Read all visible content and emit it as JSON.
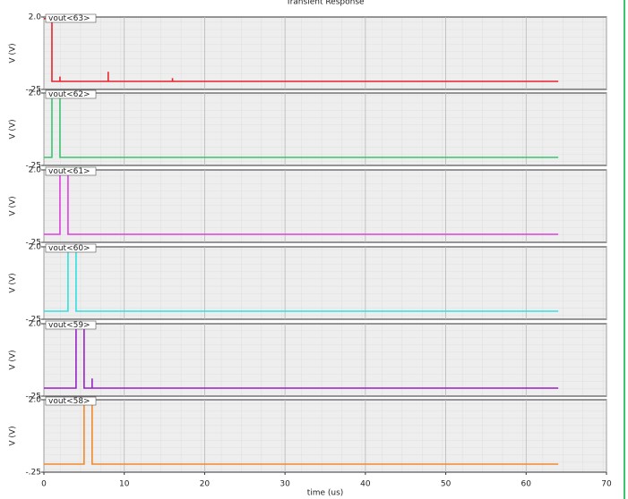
{
  "chart_data": [
    {
      "type": "line",
      "title": "Transient Response",
      "ylabel": "V (V)",
      "xlim": [
        0,
        70
      ],
      "xticks": [
        0,
        10,
        20,
        30,
        40,
        50,
        60,
        70
      ],
      "ylim": [
        -0.25,
        2.0
      ],
      "yticks": [
        {
          "value": 2.0,
          "label": "2.0"
        },
        {
          "value": -0.25,
          "label": "-.25"
        }
      ],
      "x": [
        0,
        1,
        1,
        2,
        2,
        2,
        8,
        8,
        8,
        16,
        16,
        16,
        64
      ],
      "series": [
        {
          "name": "vout<63>",
          "color": "#e8232a",
          "values": [
            1.95,
            1.95,
            0,
            0,
            0.15,
            0,
            0,
            0.3,
            0,
            0,
            0.1,
            0,
            0
          ]
        }
      ]
    },
    {
      "type": "line",
      "ylabel": "V (V)",
      "xlim": [
        0,
        70
      ],
      "xticks": [
        0,
        10,
        20,
        30,
        40,
        50,
        60,
        70
      ],
      "ylim": [
        -0.25,
        2.0
      ],
      "yticks": [
        {
          "value": 2.0,
          "label": "2.0"
        },
        {
          "value": -0.25,
          "label": "-.25"
        }
      ],
      "x": [
        0,
        1,
        1,
        2,
        2,
        64
      ],
      "series": [
        {
          "name": "vout<62>",
          "color": "#3cc46f",
          "values": [
            0,
            0,
            1.95,
            1.95,
            0,
            0
          ]
        }
      ]
    },
    {
      "type": "line",
      "ylabel": "V (V)",
      "xlim": [
        0,
        70
      ],
      "xticks": [
        0,
        10,
        20,
        30,
        40,
        50,
        60,
        70
      ],
      "ylim": [
        -0.25,
        2.0
      ],
      "yticks": [
        {
          "value": 2.0,
          "label": "2.0"
        },
        {
          "value": -0.25,
          "label": "-.25"
        }
      ],
      "x": [
        0,
        2,
        2,
        3,
        3,
        64
      ],
      "series": [
        {
          "name": "vout<61>",
          "color": "#e040e0",
          "values": [
            0,
            0,
            1.95,
            1.95,
            0,
            0
          ]
        }
      ]
    },
    {
      "type": "line",
      "ylabel": "V (V)",
      "xlim": [
        0,
        70
      ],
      "xticks": [
        0,
        10,
        20,
        30,
        40,
        50,
        60,
        70
      ],
      "ylim": [
        -0.25,
        2.0
      ],
      "yticks": [
        {
          "value": 2.0,
          "label": "2.0"
        },
        {
          "value": -0.25,
          "label": "-.25"
        }
      ],
      "x": [
        0,
        3,
        3,
        4,
        4,
        64
      ],
      "series": [
        {
          "name": "vout<60>",
          "color": "#30e0e0",
          "values": [
            0,
            0,
            1.95,
            1.95,
            0,
            0
          ]
        }
      ]
    },
    {
      "type": "line",
      "ylabel": "V (V)",
      "xlim": [
        0,
        70
      ],
      "xticks": [
        0,
        10,
        20,
        30,
        40,
        50,
        60,
        70
      ],
      "ylim": [
        -0.25,
        2.0
      ],
      "yticks": [
        {
          "value": 2.0,
          "label": "2.0"
        },
        {
          "value": -0.25,
          "label": "-.25"
        }
      ],
      "x": [
        0,
        4,
        4,
        5,
        5,
        6,
        6,
        6,
        64
      ],
      "series": [
        {
          "name": "vout<59>",
          "color": "#9a20c8",
          "values": [
            0,
            0,
            1.95,
            1.95,
            0,
            0,
            0.3,
            0,
            0
          ]
        }
      ]
    },
    {
      "type": "line",
      "ylabel": "V (V)",
      "xlabel": "time (us)",
      "xlim": [
        0,
        70
      ],
      "xticks": [
        0,
        10,
        20,
        30,
        40,
        50,
        60,
        70
      ],
      "ylim": [
        -0.25,
        2.0
      ],
      "yticks": [
        {
          "value": 2.0,
          "label": "2.0"
        },
        {
          "value": -0.25,
          "label": "-.25"
        }
      ],
      "x": [
        0,
        5,
        5,
        6,
        6,
        64
      ],
      "series": [
        {
          "name": "vout<58>",
          "color": "#f08a2a",
          "values": [
            0,
            0,
            1.95,
            1.95,
            0,
            0
          ]
        }
      ]
    }
  ]
}
